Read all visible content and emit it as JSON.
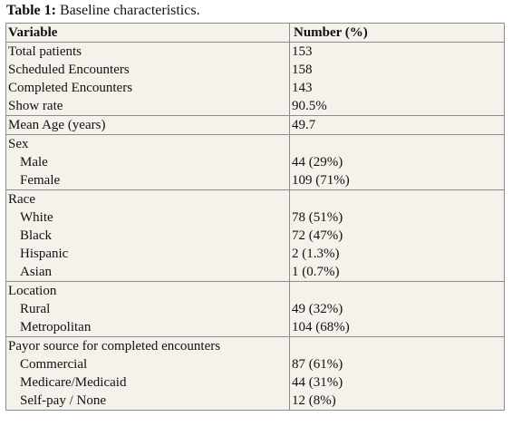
{
  "caption": {
    "label": "Table 1:",
    "text": " Baseline characteristics."
  },
  "table": {
    "headers": [
      "Variable",
      "Number (%)"
    ],
    "group1": {
      "labels": [
        "Total patients",
        "Scheduled Encounters",
        "Completed Encounters",
        "Show rate"
      ],
      "values": [
        "153",
        "158",
        "143",
        "90.5%"
      ]
    },
    "mean_age": {
      "label": "Mean Age (years)",
      "value": "49.7"
    },
    "sex": {
      "title": "Sex",
      "items": [
        {
          "label": "Male",
          "value": "44 (29%)"
        },
        {
          "label": "Female",
          "value": "109 (71%)"
        }
      ]
    },
    "race": {
      "title": "Race",
      "items": [
        {
          "label": "White",
          "value": "78 (51%)"
        },
        {
          "label": "Black",
          "value": "72 (47%)"
        },
        {
          "label": "Hispanic",
          "value": "2 (1.3%)"
        },
        {
          "label": "Asian",
          "value": "1 (0.7%)"
        }
      ]
    },
    "location": {
      "title": "Location",
      "items": [
        {
          "label": "Rural",
          "value": "49 (32%)"
        },
        {
          "label": "Metropolitan",
          "value": "104 (68%)"
        }
      ]
    },
    "payor": {
      "title": "Payor source for completed encounters",
      "items": [
        {
          "label": "Commercial",
          "value": "87 (61%)"
        },
        {
          "label": "Medicare/Medicaid",
          "value": "44 (31%)"
        },
        {
          "label": "Self-pay / None",
          "value": "12 (8%)"
        }
      ]
    }
  }
}
